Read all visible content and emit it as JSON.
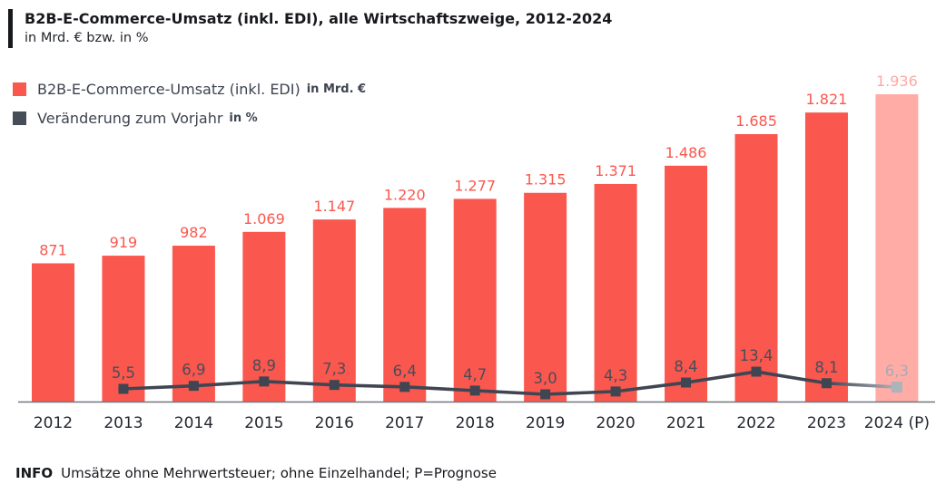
{
  "header": {
    "title": "B2B-E-Commerce-Umsatz (inkl. EDI), alle Wirtschaftszweige, 2012-2024",
    "subtitle": "in Mrd. € bzw. in %"
  },
  "legend": [
    {
      "label": "B2B-E-Commerce-Umsatz (inkl. EDI)",
      "unit": "in Mrd. €",
      "color": "#fa574e"
    },
    {
      "label": "Veränderung zum Vorjahr",
      "unit": "in %",
      "color": "#464d59"
    }
  ],
  "footer": {
    "info_label": "INFO",
    "text": "Umsätze ohne Mehrwertsteuer; ohne Einzelhandel; P=Prognose"
  },
  "chart_data": {
    "type": "bar+line",
    "title": "B2B-E-Commerce-Umsatz (inkl. EDI), alle Wirtschaftszweige, 2012-2024",
    "subtitle_units": "in Mrd. € bzw. in %",
    "categories": [
      "2012",
      "2013",
      "2014",
      "2015",
      "2016",
      "2017",
      "2018",
      "2019",
      "2020",
      "2021",
      "2022",
      "2023",
      "2024 (P)"
    ],
    "forecast_index": 12,
    "grid": false,
    "legend_position": "top-left",
    "y_axis_visible": false,
    "series": [
      {
        "name": "B2B-E-Commerce-Umsatz (inkl. EDI) in Mrd. €",
        "type": "bar",
        "values": [
          871,
          919,
          982,
          1069,
          1147,
          1220,
          1277,
          1315,
          1371,
          1486,
          1685,
          1821,
          1936
        ],
        "labels": [
          "871",
          "919",
          "982",
          "1.069",
          "1.147",
          "1.220",
          "1.277",
          "1.315",
          "1.371",
          "1.486",
          "1.685",
          "1.821",
          "1.936"
        ]
      },
      {
        "name": "Veränderung zum Vorjahr in %",
        "type": "line",
        "values": [
          null,
          5.5,
          6.9,
          8.9,
          7.3,
          6.4,
          4.7,
          3.0,
          4.3,
          8.4,
          13.4,
          8.1,
          6.3
        ],
        "labels": [
          "",
          "5,5",
          "6,9",
          "8,9",
          "7,3",
          "6,4",
          "4,7",
          "3,0",
          "4,3",
          "8,4",
          "13,4",
          "8,1",
          "6,3"
        ]
      }
    ],
    "colors": {
      "bar": "#fa574e",
      "bar_forecast": "#ffaca6",
      "bar_label": "#fa574e",
      "bar_label_forecast": "#ffa8a2",
      "line": "#3f4652",
      "marker": "#3f4652",
      "marker_forecast": "#adb3ba",
      "pct_label": "#474e59",
      "pct_label_forecast": "#a5acb5",
      "axis": "#71767d",
      "axis_label": "#23272e"
    }
  }
}
